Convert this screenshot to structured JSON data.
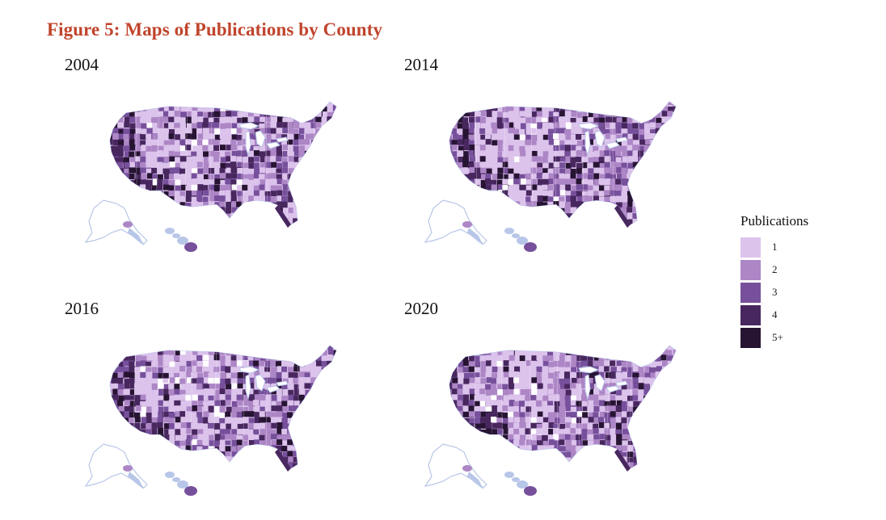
{
  "title": "Figure 5: Maps of Publications by County",
  "maps": [
    {
      "year": "2004",
      "seed": 11
    },
    {
      "year": "2014",
      "seed": 37
    },
    {
      "year": "2016",
      "seed": 59
    },
    {
      "year": "2020",
      "seed": 83
    }
  ],
  "legend": {
    "title": "Publications",
    "items": [
      {
        "label": "1",
        "color": "#dcc3ec"
      },
      {
        "label": "2",
        "color": "#ad86c6"
      },
      {
        "label": "3",
        "color": "#77509c"
      },
      {
        "label": "4",
        "color": "#48275f"
      },
      {
        "label": "5+",
        "color": "#271433"
      }
    ]
  },
  "colors": {
    "title": "#c0442c",
    "water": "#b8c6e8"
  }
}
